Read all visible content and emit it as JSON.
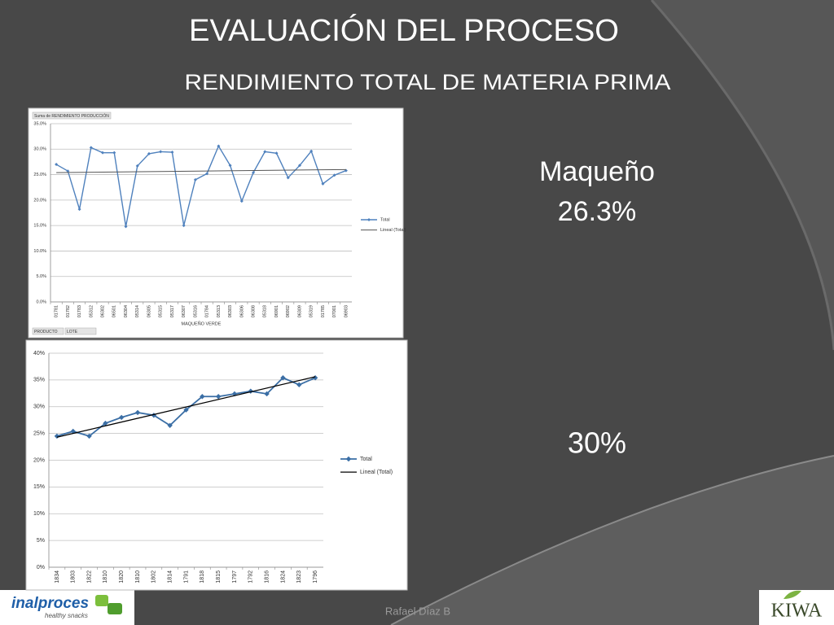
{
  "title": "EVALUACIÓN DEL PROCESO",
  "subtitle": "RENDIMIENTO  TOTAL DE MATERIA PRIMA",
  "callouts": [
    "Maqueño",
    "26.3%",
    "30%"
  ],
  "footer": "Rafael Díaz B",
  "logos": {
    "left": "inalproces",
    "left_tagline": "healthy snacks",
    "right": "KIWA"
  },
  "chart_data": [
    {
      "type": "line",
      "field_label": "Suma de RENDIMIENTO PRODUCCIÓN",
      "x_label": "MAQUEÑO VERDE",
      "row_fields": [
        "PRODUCTO",
        "LOTE"
      ],
      "categories": [
        "01781",
        "01782",
        "01783",
        "05312",
        "06302",
        "06501",
        "06304",
        "05314",
        "06305",
        "05315",
        "05317",
        "06307",
        "05316",
        "01784",
        "05313",
        "06303",
        "06306",
        "06308",
        "05318",
        "06901",
        "06902",
        "06309",
        "05319",
        "01785",
        "07001",
        "06903"
      ],
      "series": [
        {
          "name": "Total",
          "color": "#4f81bd",
          "values": [
            27.0,
            25.7,
            18.2,
            30.3,
            29.3,
            29.3,
            14.8,
            26.7,
            29.1,
            29.5,
            29.4,
            15.0,
            24.0,
            25.2,
            30.6,
            26.8,
            19.8,
            25.4,
            29.5,
            29.2,
            24.4,
            26.8,
            29.6,
            23.2,
            24.9,
            25.8
          ]
        }
      ],
      "trend": {
        "name": "Lineal (Total)",
        "color": "#555555",
        "start": 25.4,
        "end": 26.0
      },
      "ylim": [
        0,
        35
      ],
      "yticks": [
        {
          "value": 0,
          "label": "0.0%"
        },
        {
          "value": 5,
          "label": "5.0%"
        },
        {
          "value": 10,
          "label": "10.0%"
        },
        {
          "value": 15,
          "label": "15.0%"
        },
        {
          "value": 20,
          "label": "20.0%"
        },
        {
          "value": 25,
          "label": "25.0%"
        },
        {
          "value": 30,
          "label": "30.0%"
        },
        {
          "value": 35,
          "label": "35.0%"
        }
      ],
      "grid": true,
      "legend": "right"
    },
    {
      "type": "line",
      "categories": [
        "1834",
        "1803",
        "1822",
        "1810",
        "1820",
        "1810",
        "1802",
        "1814",
        "1791",
        "1818",
        "1815",
        "1797",
        "1792",
        "1816",
        "1824",
        "1823",
        "1796"
      ],
      "series": [
        {
          "name": "Total",
          "color": "#3a6ea5",
          "values": [
            24.5,
            25.4,
            24.5,
            26.9,
            28.0,
            28.9,
            28.4,
            26.5,
            29.4,
            31.9,
            31.9,
            32.4,
            32.9,
            32.4,
            35.4,
            34.1,
            35.4
          ]
        }
      ],
      "trend": {
        "name": "Lineal (Total)",
        "color": "#000000",
        "start": 24.3,
        "end": 35.6
      },
      "ylim": [
        0,
        40
      ],
      "yticks": [
        {
          "value": 0,
          "label": "0%"
        },
        {
          "value": 5,
          "label": "5%"
        },
        {
          "value": 10,
          "label": "10%"
        },
        {
          "value": 15,
          "label": "15%"
        },
        {
          "value": 20,
          "label": "20%"
        },
        {
          "value": 25,
          "label": "25%"
        },
        {
          "value": 30,
          "label": "30%"
        },
        {
          "value": 35,
          "label": "35%"
        },
        {
          "value": 40,
          "label": "40%"
        }
      ],
      "grid": true,
      "legend": "right"
    }
  ]
}
